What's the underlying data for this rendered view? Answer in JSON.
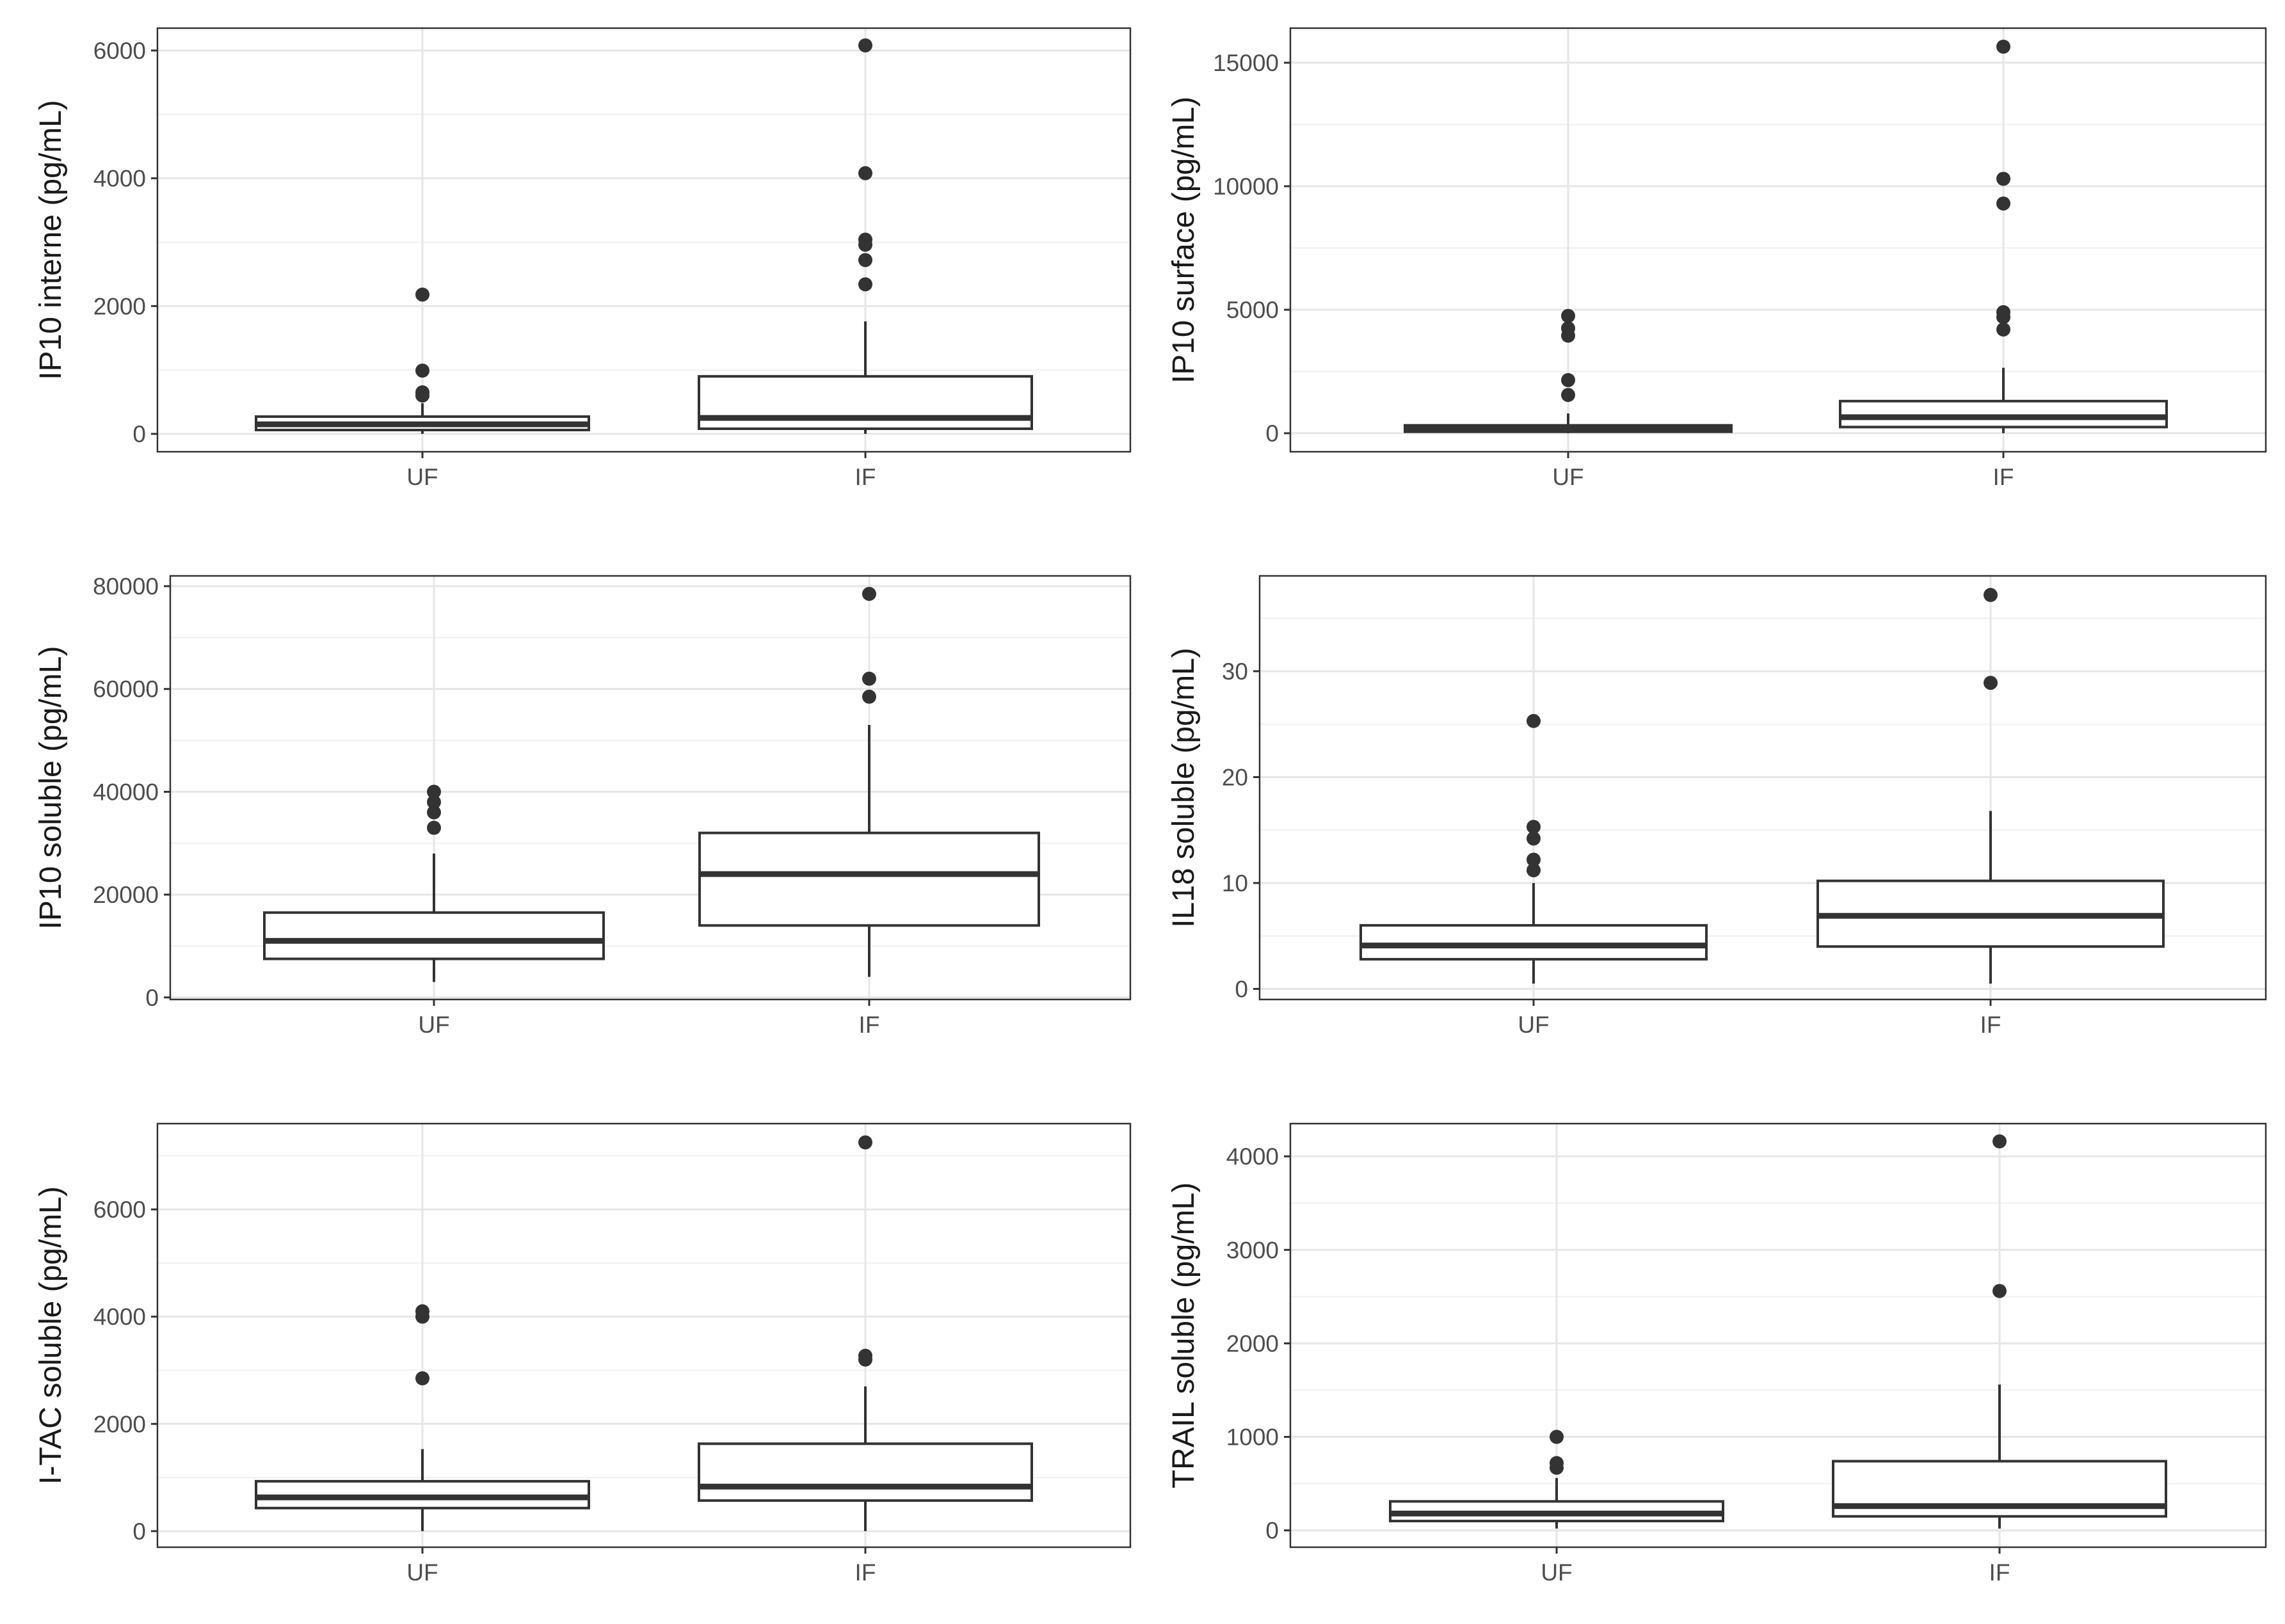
{
  "chart_data": [
    {
      "type": "boxplot",
      "title": "",
      "xlabel": "",
      "ylabel": "IP10 interne (pg/mL)",
      "categories": [
        "UF",
        "IF"
      ],
      "ylim": [
        -280,
        6350
      ],
      "yticks": [
        0,
        2000,
        4000,
        6000
      ],
      "yticks_labels": [
        "0",
        "2000",
        "4000",
        "6000"
      ],
      "grid": true,
      "boxes": [
        {
          "category": "UF",
          "whisker_low": 0,
          "q1": 60,
          "median": 150,
          "q3": 270,
          "whisker_high": 480,
          "outliers": [
            600,
            650,
            990,
            2180
          ]
        },
        {
          "category": "IF",
          "whisker_low": 0,
          "q1": 80,
          "median": 250,
          "q3": 900,
          "whisker_high": 1760,
          "outliers": [
            2340,
            2720,
            2960,
            3040,
            4080,
            6080
          ]
        }
      ]
    },
    {
      "type": "boxplot",
      "title": "",
      "xlabel": "",
      "ylabel": "IP10 surface (pg/mL)",
      "categories": [
        "UF",
        "IF"
      ],
      "ylim": [
        -750,
        16400
      ],
      "yticks": [
        0,
        5000,
        10000,
        15000
      ],
      "yticks_labels": [
        "0",
        "5000",
        "10000",
        "15000"
      ],
      "grid": true,
      "boxes": [
        {
          "category": "UF",
          "whisker_low": 0,
          "q1": 60,
          "median": 180,
          "q3": 320,
          "whisker_high": 800,
          "outliers": [
            1550,
            2150,
            3950,
            4250,
            4750
          ]
        },
        {
          "category": "IF",
          "whisker_low": 0,
          "q1": 250,
          "median": 650,
          "q3": 1300,
          "whisker_high": 2650,
          "outliers": [
            4200,
            4700,
            4900,
            9300,
            10300,
            15650
          ]
        }
      ]
    },
    {
      "type": "boxplot",
      "title": "",
      "xlabel": "",
      "ylabel": "IP10 soluble (pg/mL)",
      "categories": [
        "UF",
        "IF"
      ],
      "ylim": [
        -400,
        82000
      ],
      "yticks": [
        0,
        20000,
        40000,
        60000,
        80000
      ],
      "yticks_labels": [
        "0",
        "20000",
        "40000",
        "60000",
        "80000"
      ],
      "grid": true,
      "boxes": [
        {
          "category": "UF",
          "whisker_low": 3000,
          "q1": 7500,
          "median": 11000,
          "q3": 16500,
          "whisker_high": 28000,
          "outliers": [
            33000,
            36000,
            38000,
            40000
          ]
        },
        {
          "category": "IF",
          "whisker_low": 4000,
          "q1": 14000,
          "median": 24000,
          "q3": 32000,
          "whisker_high": 53000,
          "outliers": [
            58500,
            62000,
            78500
          ]
        }
      ]
    },
    {
      "type": "boxplot",
      "title": "",
      "xlabel": "",
      "ylabel": "IL18 soluble (pg/mL)",
      "categories": [
        "UF",
        "IF"
      ],
      "ylim": [
        -1,
        39
      ],
      "yticks": [
        0,
        10,
        20,
        30
      ],
      "yticks_labels": [
        "0",
        "10",
        "20",
        "30"
      ],
      "grid": true,
      "boxes": [
        {
          "category": "UF",
          "whisker_low": 0.5,
          "q1": 2.8,
          "median": 4.1,
          "q3": 6.0,
          "whisker_high": 10.0,
          "outliers": [
            11.2,
            12.2,
            14.2,
            15.3,
            25.3
          ]
        },
        {
          "category": "IF",
          "whisker_low": 0.5,
          "q1": 4.0,
          "median": 6.9,
          "q3": 10.2,
          "whisker_high": 16.8,
          "outliers": [
            28.9,
            37.2
          ]
        }
      ]
    },
    {
      "type": "boxplot",
      "title": "",
      "xlabel": "",
      "ylabel": "I-TAC soluble (pg/mL)",
      "categories": [
        "UF",
        "IF"
      ],
      "ylim": [
        -300,
        7600
      ],
      "yticks": [
        0,
        2000,
        4000,
        6000
      ],
      "yticks_labels": [
        "0",
        "2000",
        "4000",
        "6000"
      ],
      "grid": true,
      "boxes": [
        {
          "category": "UF",
          "whisker_low": 0,
          "q1": 430,
          "median": 630,
          "q3": 930,
          "whisker_high": 1530,
          "outliers": [
            2850,
            4000,
            4100
          ]
        },
        {
          "category": "IF",
          "whisker_low": 0,
          "q1": 570,
          "median": 830,
          "q3": 1630,
          "whisker_high": 2700,
          "outliers": [
            3200,
            3270,
            7250
          ]
        }
      ]
    },
    {
      "type": "boxplot",
      "title": "",
      "xlabel": "",
      "ylabel": "TRAIL soluble (pg/mL)",
      "categories": [
        "UF",
        "IF"
      ],
      "ylim": [
        -180,
        4350
      ],
      "yticks": [
        0,
        1000,
        2000,
        3000,
        4000
      ],
      "yticks_labels": [
        "0",
        "1000",
        "2000",
        "3000",
        "4000"
      ],
      "grid": true,
      "boxes": [
        {
          "category": "UF",
          "whisker_low": 20,
          "q1": 100,
          "median": 180,
          "q3": 310,
          "whisker_high": 560,
          "outliers": [
            670,
            720,
            1000
          ]
        },
        {
          "category": "IF",
          "whisker_low": 20,
          "q1": 150,
          "median": 260,
          "q3": 740,
          "whisker_high": 1560,
          "outliers": [
            2560,
            4160
          ]
        }
      ]
    }
  ]
}
